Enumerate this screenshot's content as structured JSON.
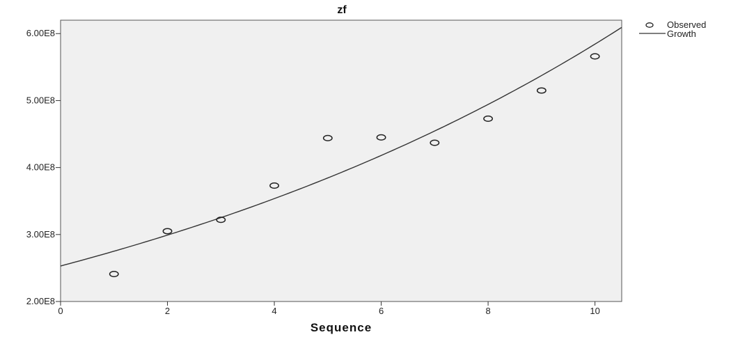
{
  "chart_data": {
    "type": "scatter",
    "title": "zf",
    "xlabel": "Sequence",
    "ylabel": "",
    "xlim": [
      0,
      10.5
    ],
    "ylim": [
      200000000,
      620000000
    ],
    "x_ticks": [
      0,
      2,
      4,
      6,
      8,
      10
    ],
    "x_tick_labels": [
      "0",
      "2",
      "4",
      "6",
      "8",
      "10"
    ],
    "y_ticks": [
      200000000,
      300000000,
      400000000,
      500000000,
      600000000
    ],
    "y_tick_labels": [
      "2.00E8",
      "3.00E8",
      "4.00E8",
      "5.00E8",
      "6.00E8"
    ],
    "grid": false,
    "plot_background": "#f0f0f0",
    "legend_position": "outside-top-right",
    "series": [
      {
        "name": "Observed",
        "type": "scatter",
        "marker": "hollow-circle",
        "x": [
          1,
          2,
          3,
          4,
          5,
          6,
          7,
          8,
          9,
          10
        ],
        "y": [
          241000000,
          305000000,
          322000000,
          373000000,
          444000000,
          445000000,
          437000000,
          473000000,
          515000000,
          566000000
        ]
      },
      {
        "name": "Growth",
        "type": "line",
        "model": "exponential",
        "intercept_at_x0": 253000000,
        "growth_rate": 0.0837,
        "x_range": [
          0,
          10.5
        ]
      }
    ],
    "legend": [
      {
        "label": "Observed",
        "symbol": "hollow-circle"
      },
      {
        "label": "Growth",
        "symbol": "line"
      }
    ]
  }
}
